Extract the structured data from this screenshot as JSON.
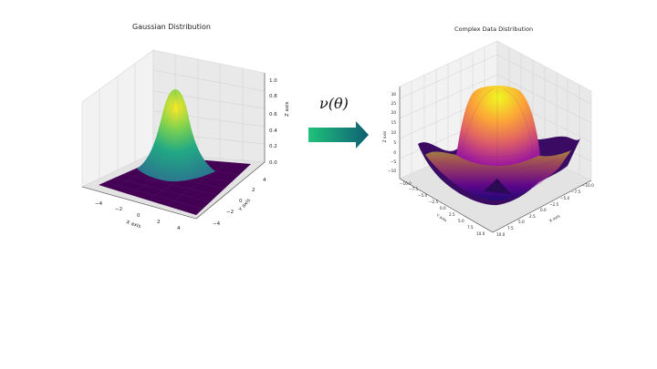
{
  "left_plot": {
    "title": "Gaussian Distribution",
    "xlabel": "X axis",
    "ylabel": "Y axis",
    "zlabel": "Z axis",
    "x_ticks": [
      "−4",
      "−2",
      "0",
      "2",
      "4"
    ],
    "y_ticks": [
      "−4",
      "−2",
      "0",
      "2",
      "4"
    ],
    "z_ticks": [
      "0.0",
      "0.2",
      "0.4",
      "0.6",
      "0.8",
      "1.0"
    ],
    "colormap": "viridis"
  },
  "operator": {
    "label": "ν(θ)",
    "arrow_colors": [
      "#1fc27a",
      "#0f5f74"
    ]
  },
  "right_plot": {
    "title": "Complex Data Distribution",
    "xlabel": "X axis",
    "ylabel": "Y axis",
    "zlabel": "Z axis",
    "x_ticks": [
      "−10.0",
      "−7.5",
      "−5.0",
      "−2.5",
      "0.0",
      "2.5",
      "5.0",
      "7.5",
      "10.0"
    ],
    "y_ticks": [
      "10.0",
      "7.5",
      "5.0",
      "2.5",
      "0.0",
      "−2.5",
      "−5.0",
      "−7.5",
      "−10.0"
    ],
    "z_ticks": [
      "−10",
      "−5",
      "0",
      "5",
      "10",
      "15",
      "20",
      "25",
      "30"
    ],
    "colormap": "plasma"
  }
}
